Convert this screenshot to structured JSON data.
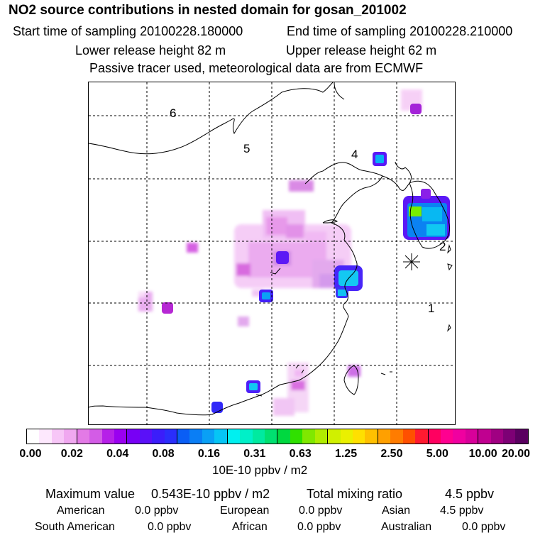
{
  "title": "NO2 source contributions in nested domain for gosan_201002",
  "sampling": {
    "start_label": "Start time of sampling 20100228.180000",
    "end_label": "End time of sampling 20100228.210000"
  },
  "release": {
    "lower_label": "Lower release height   82 m",
    "upper_label": "Upper release height   62 m"
  },
  "note": "Passive tracer used, meteorological data are from ECMWF",
  "map": {
    "region_labels": [
      "1",
      "2",
      "4",
      "5",
      "6"
    ],
    "receptor_marker": "asterisk-icon"
  },
  "colorbar": {
    "colors": [
      "#ffffff",
      "#fde8fd",
      "#f7c6f7",
      "#f0a8f0",
      "#e37ae6",
      "#d35ce6",
      "#b620e8",
      "#9a00f0",
      "#7800f5",
      "#5a10f8",
      "#3b1dfa",
      "#2a2efb",
      "#0a5ef5",
      "#0a7ef5",
      "#0aa0f5",
      "#06c5f5",
      "#00f0f0",
      "#00f0c8",
      "#00eaa0",
      "#00e070",
      "#00d840",
      "#30e000",
      "#80e800",
      "#b0ec00",
      "#d0f000",
      "#eaf000",
      "#ffe000",
      "#ffc000",
      "#ffa000",
      "#ff7c00",
      "#ff5000",
      "#ff1a30",
      "#ff0060",
      "#ff0090",
      "#f000a0",
      "#d8009a",
      "#c00090",
      "#a00082",
      "#7d0075",
      "#5a0060"
    ],
    "tick_labels": [
      "0.00",
      "0.02",
      "0.04",
      "0.08",
      "0.16",
      "0.31",
      "0.63",
      "1.25",
      "2.50",
      "5.00",
      "10.00",
      "20.00"
    ],
    "units": "10E-10 ppbv / m2"
  },
  "summary": {
    "max_label": "Maximum value",
    "max_value": "0.543E-10 ppbv / m2",
    "total_label": "Total mixing ratio",
    "total_value": "4.5 ppbv",
    "regions": [
      {
        "name": "American",
        "value": "0.0 ppbv"
      },
      {
        "name": "European",
        "value": "0.0 ppbv"
      },
      {
        "name": "Asian",
        "value": "4.5 ppbv"
      },
      {
        "name": "South American",
        "value": "0.0 ppbv"
      },
      {
        "name": "African",
        "value": "0.0 ppbv"
      },
      {
        "name": "Australian",
        "value": "0.0 ppbv"
      }
    ]
  }
}
